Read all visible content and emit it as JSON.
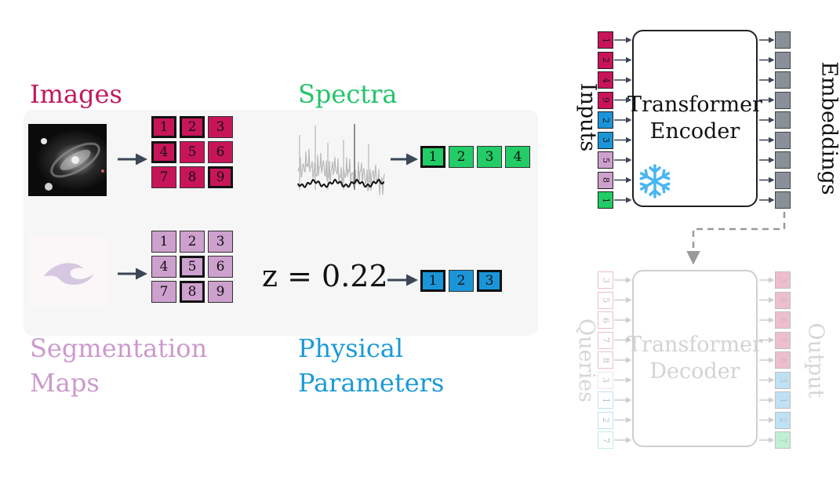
{
  "left": {
    "images_label": "Images",
    "spectra_label": "Spectra",
    "segmentation_label_line1": "Segmentation",
    "segmentation_label_line2": "Maps",
    "physical_label_line1": "Physical",
    "physical_label_line2": "Parameters",
    "image_grid": [
      "1",
      "2",
      "3",
      "4",
      "5",
      "6",
      "7",
      "8",
      "9"
    ],
    "image_grid_bold": [
      0,
      1,
      3,
      8
    ],
    "segmentation_grid": [
      "1",
      "2",
      "3",
      "4",
      "5",
      "6",
      "7",
      "8",
      "9"
    ],
    "segmentation_grid_bold": [
      4,
      7
    ],
    "spectra_tokens": [
      "1",
      "2",
      "3",
      "4"
    ],
    "spectra_bold": [
      0
    ],
    "redshift_expression": "z = 0.22",
    "physical_tokens": [
      "1",
      "2",
      "3"
    ],
    "physical_bold": [
      0,
      2
    ]
  },
  "encoder": {
    "title_line1": "Transformer",
    "title_line2": "Encoder",
    "inputs_label": "Inputs",
    "embeddings_label": "Embeddings",
    "snowflake_icon": "snowflake-icon",
    "input_tokens": [
      {
        "text": "1",
        "color": "#c8155a"
      },
      {
        "text": "2",
        "color": "#c8155a"
      },
      {
        "text": "4",
        "color": "#c8155a"
      },
      {
        "text": "9",
        "color": "#c8155a"
      },
      {
        "text": "2",
        "color": "#1a95d8"
      },
      {
        "text": "3",
        "color": "#1a95d8"
      },
      {
        "text": "5",
        "color": "#cda0cd"
      },
      {
        "text": "8",
        "color": "#cda0cd"
      },
      {
        "text": "1",
        "color": "#22cc66"
      }
    ]
  },
  "decoder": {
    "title_line1": "Transformer",
    "title_line2": "Decoder",
    "queries_label": "Queries",
    "output_label": "Output",
    "query_tokens": [
      {
        "text": "3",
        "color": "#c8155a"
      },
      {
        "text": "5",
        "color": "#c8155a"
      },
      {
        "text": "6",
        "color": "#c8155a"
      },
      {
        "text": "7",
        "color": "#c8155a"
      },
      {
        "text": "8",
        "color": "#c8155a"
      },
      {
        "text": "3",
        "color": "#cda0cd"
      },
      {
        "text": "1",
        "color": "#1a95d8"
      },
      {
        "text": "2",
        "color": "#1a95d8"
      },
      {
        "text": "7",
        "color": "#22cc66"
      }
    ],
    "output_tokens": [
      {
        "text": "3",
        "color": "#c8155a"
      },
      {
        "text": "5",
        "color": "#c8155a"
      },
      {
        "text": "6",
        "color": "#c8155a"
      },
      {
        "text": "7",
        "color": "#c8155a"
      },
      {
        "text": "8",
        "color": "#c8155a"
      },
      {
        "text": "3",
        "color": "#1a95d8"
      },
      {
        "text": "1",
        "color": "#1a95d8"
      },
      {
        "text": "2",
        "color": "#1a95d8"
      },
      {
        "text": "7",
        "color": "#22cc66"
      }
    ]
  },
  "colors": {
    "images": "#c2185b",
    "spectra": "#22c46a",
    "segmentation": "#cc99cc",
    "physical": "#1a9ad6",
    "embedding": "#8a9099"
  }
}
